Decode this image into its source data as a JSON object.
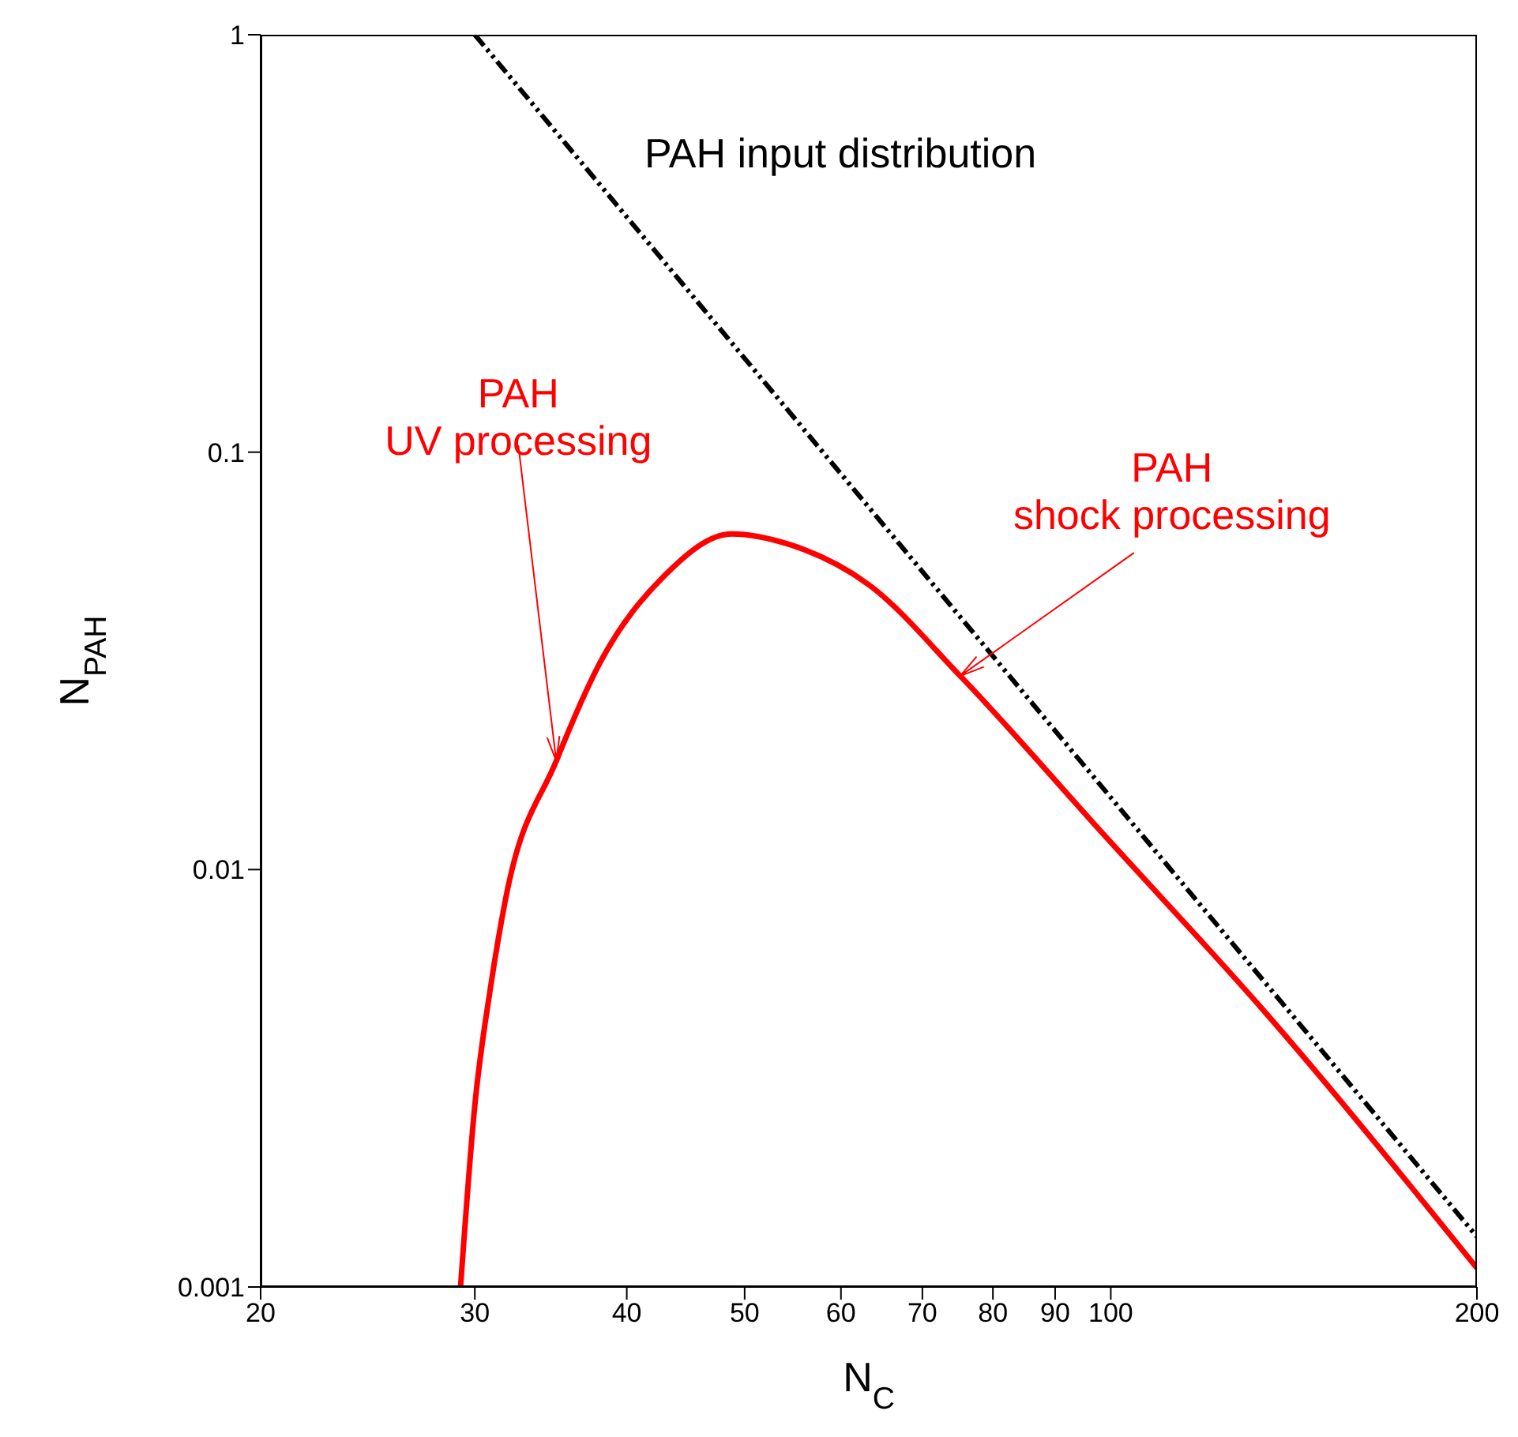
{
  "chart_data": {
    "type": "line",
    "xlabel": "N$_{C}$",
    "ylabel": "N$_{PAH}$",
    "log": "xy",
    "xlim": [
      20,
      200
    ],
    "ylim": [
      0.001,
      1
    ],
    "xticks": [
      20,
      30,
      40,
      50,
      60,
      70,
      80,
      90,
      100,
      200
    ],
    "yticks": [
      0.001,
      0.01,
      0.1,
      1
    ],
    "legend": false,
    "marker": "none",
    "series": [
      {
        "name": "PAH input distribution",
        "color": "#000000",
        "line_style": "dashed",
        "x": [
          30,
          200
        ],
        "values": [
          1,
          0.00132
        ]
      },
      {
        "color": "#ff0000",
        "line_style": "solid",
        "x": [
          29.2,
          30,
          30.9,
          31.8,
          35,
          38,
          42.9,
          48.8,
          54.5,
          63.2,
          75.2,
          99,
          133.6,
          200
        ],
        "values": [
          0.001,
          0.00272,
          0.0052,
          0.0085,
          0.0182,
          0.0312,
          0.0504,
          0.0637,
          0.06,
          0.0482,
          0.0291,
          0.012,
          0.00459,
          0.00111
        ]
      }
    ],
    "annotations": [
      {
        "text": "PAH\nUV processing",
        "x": 35,
        "y": 0.0182
      },
      {
        "text": "PAH\nshock processing",
        "x": 75.2,
        "y": 0.0291
      }
    ]
  }
}
